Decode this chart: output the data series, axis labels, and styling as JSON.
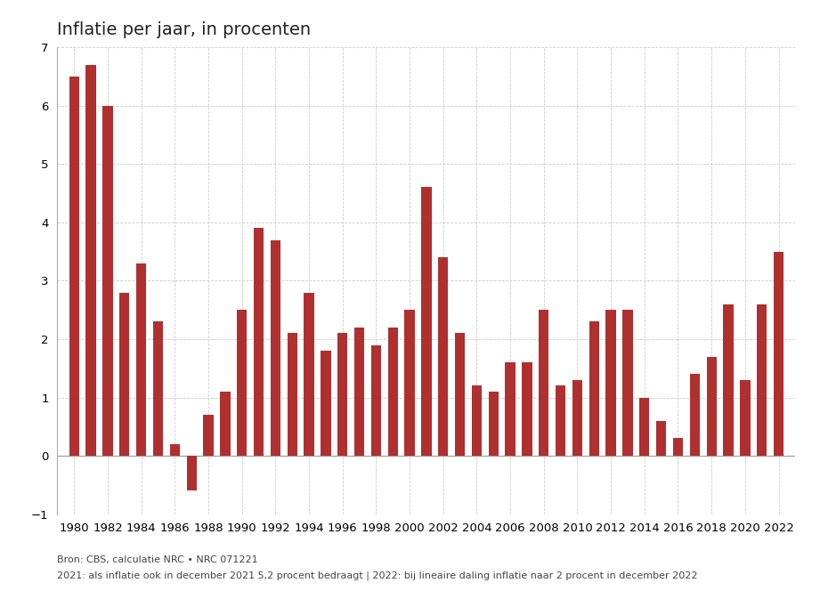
{
  "years": [
    1980,
    1981,
    1982,
    1983,
    1984,
    1985,
    1986,
    1987,
    1988,
    1989,
    1990,
    1991,
    1992,
    1993,
    1994,
    1995,
    1996,
    1997,
    1998,
    1999,
    2000,
    2001,
    2002,
    2003,
    2004,
    2005,
    2006,
    2007,
    2008,
    2009,
    2010,
    2011,
    2012,
    2013,
    2014,
    2015,
    2016,
    2017,
    2018,
    2019,
    2020,
    2021,
    2022
  ],
  "values": [
    6.5,
    6.7,
    6.0,
    2.8,
    3.3,
    2.3,
    0.2,
    -0.6,
    0.7,
    1.1,
    2.5,
    3.9,
    3.7,
    2.1,
    2.8,
    1.8,
    2.1,
    2.2,
    1.9,
    2.2,
    2.5,
    4.6,
    3.4,
    2.1,
    1.2,
    1.1,
    1.6,
    1.6,
    2.5,
    1.2,
    1.3,
    2.3,
    2.5,
    2.5,
    1.0,
    0.6,
    0.3,
    1.4,
    1.7,
    2.6,
    1.3,
    2.6,
    3.5
  ],
  "bar_color": "#b03030",
  "background_color": "#ffffff",
  "grid_color": "#cccccc",
  "title": "Inflatie per jaar, in procenten",
  "title_fontsize": 14,
  "ylim": [
    -1,
    7
  ],
  "yticks": [
    -1,
    0,
    1,
    2,
    3,
    4,
    5,
    6,
    7
  ],
  "xtick_labels": [
    "1980",
    "1982",
    "1984",
    "1986",
    "1988",
    "1990",
    "1992",
    "1994",
    "1996",
    "1998",
    "2000",
    "2002",
    "2004",
    "2006",
    "2008",
    "2010",
    "2012",
    "2014",
    "2016",
    "2018",
    "2020",
    "2022"
  ],
  "footnote_line1": "Bron: CBS, calculatie NRC • NRC 071221",
  "footnote_line2": "2021: als inflatie ook in december 2021 5,2 procent bedraagt | 2022: bij lineaire daling inflatie naar 2 procent in december 2022",
  "footnote_fontsize": 8.0,
  "axis_fontsize": 9.5
}
